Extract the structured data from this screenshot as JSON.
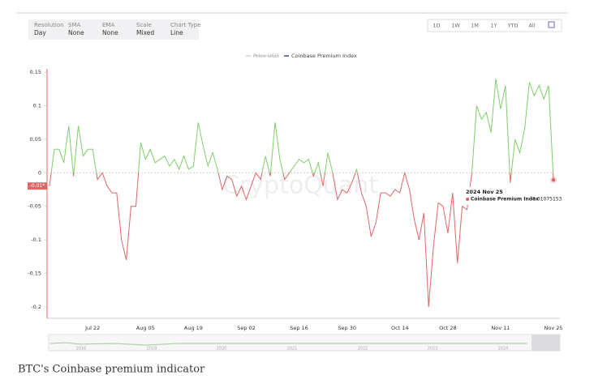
{
  "toolbar": [
    {
      "label": "Resolution",
      "value": "Day"
    },
    {
      "label": "SMA",
      "value": "None"
    },
    {
      "label": "EMA",
      "value": "None"
    },
    {
      "label": "Scale",
      "value": "Mixed"
    },
    {
      "label": "Chart Type",
      "value": "Line"
    }
  ],
  "ranges": [
    "1D",
    "1W",
    "1M",
    "1Y",
    "YTD",
    "All"
  ],
  "watermark": "CryptoQuant",
  "navigator_years": [
    "2016",
    "2018",
    "2020",
    "2021",
    "2022",
    "2023",
    "2024"
  ],
  "caption": "BTC's Coinbase premium indicator",
  "chart_data": {
    "type": "line",
    "legend_hidden": [
      {
        "name": "Price USD",
        "color": "#bbbbbb"
      }
    ],
    "series": [
      {
        "name": "Coinbase Premium Index",
        "color": "#3c4aa0",
        "values": [
          -0.02,
          0.035,
          0.035,
          0.015,
          0.07,
          -0.005,
          0.07,
          0.025,
          0.035,
          0.035,
          -0.01,
          0.0,
          -0.02,
          -0.03,
          -0.03,
          -0.1,
          -0.13,
          -0.05,
          -0.05,
          0.045,
          0.02,
          0.035,
          0.015,
          0.02,
          0.025,
          0.01,
          0.02,
          0.005,
          0.025,
          0.005,
          0.01,
          0.075,
          0.04,
          0.01,
          0.03,
          0.005,
          -0.025,
          -0.005,
          -0.01,
          -0.035,
          -0.02,
          -0.04,
          -0.02,
          0.0,
          -0.01,
          0.025,
          -0.005,
          0.075,
          0.02,
          -0.01,
          0.0,
          0.01,
          0.02,
          0.015,
          0.02,
          -0.005,
          0.015,
          -0.02,
          0.03,
          0.0,
          -0.04,
          -0.025,
          -0.03,
          -0.015,
          0.005,
          -0.03,
          -0.05,
          -0.095,
          -0.075,
          -0.03,
          -0.03,
          -0.035,
          -0.025,
          -0.03,
          0.0,
          -0.025,
          -0.07,
          -0.1,
          -0.06,
          -0.2,
          -0.11,
          -0.045,
          -0.05,
          -0.09,
          -0.03,
          -0.135,
          -0.05,
          -0.055,
          0.0,
          0.1,
          0.08,
          0.09,
          0.06,
          0.14,
          0.095,
          0.13,
          -0.015,
          0.05,
          0.03,
          0.065,
          0.135,
          0.115,
          0.13,
          0.11,
          0.13,
          -0.01075153
        ]
      }
    ],
    "categories": [
      null,
      null,
      null,
      null,
      null,
      null,
      null,
      null,
      null,
      "Jul 22",
      null,
      null,
      null,
      null,
      null,
      null,
      null,
      null,
      null,
      null,
      "Aug 05",
      null,
      null,
      null,
      null,
      null,
      null,
      null,
      null,
      null,
      "Aug 19",
      null,
      null,
      null,
      null,
      null,
      null,
      null,
      null,
      null,
      null,
      "Sep 02",
      null,
      null,
      null,
      null,
      null,
      null,
      null,
      null,
      null,
      null,
      "Sep 16",
      null,
      null,
      null,
      null,
      null,
      null,
      null,
      null,
      null,
      "Sep 30",
      null,
      null,
      null,
      null,
      null,
      null,
      null,
      null,
      null,
      null,
      "Oct 14",
      null,
      null,
      null,
      null,
      null,
      null,
      null,
      null,
      null,
      "Oct 28",
      null,
      null,
      null,
      null,
      null,
      null,
      null,
      null,
      null,
      null,
      "Nov 11",
      null,
      null,
      null,
      null,
      null,
      null,
      null,
      null,
      null,
      null,
      "Nov 25"
    ],
    "color_positive": "#7fcf6a",
    "color_negative": "#e06666",
    "ylim": [
      -0.217,
      0.173
    ],
    "yticks": [
      0.15,
      0.1,
      0.05,
      0,
      -0.05,
      -0.1,
      -0.15,
      -0.2
    ],
    "zero_line": true,
    "current_badge": "-0.01*",
    "tooltip": {
      "date": "2024 Nov 25",
      "label": "Coinbase Premium Index",
      "value": -0.01075153
    }
  }
}
